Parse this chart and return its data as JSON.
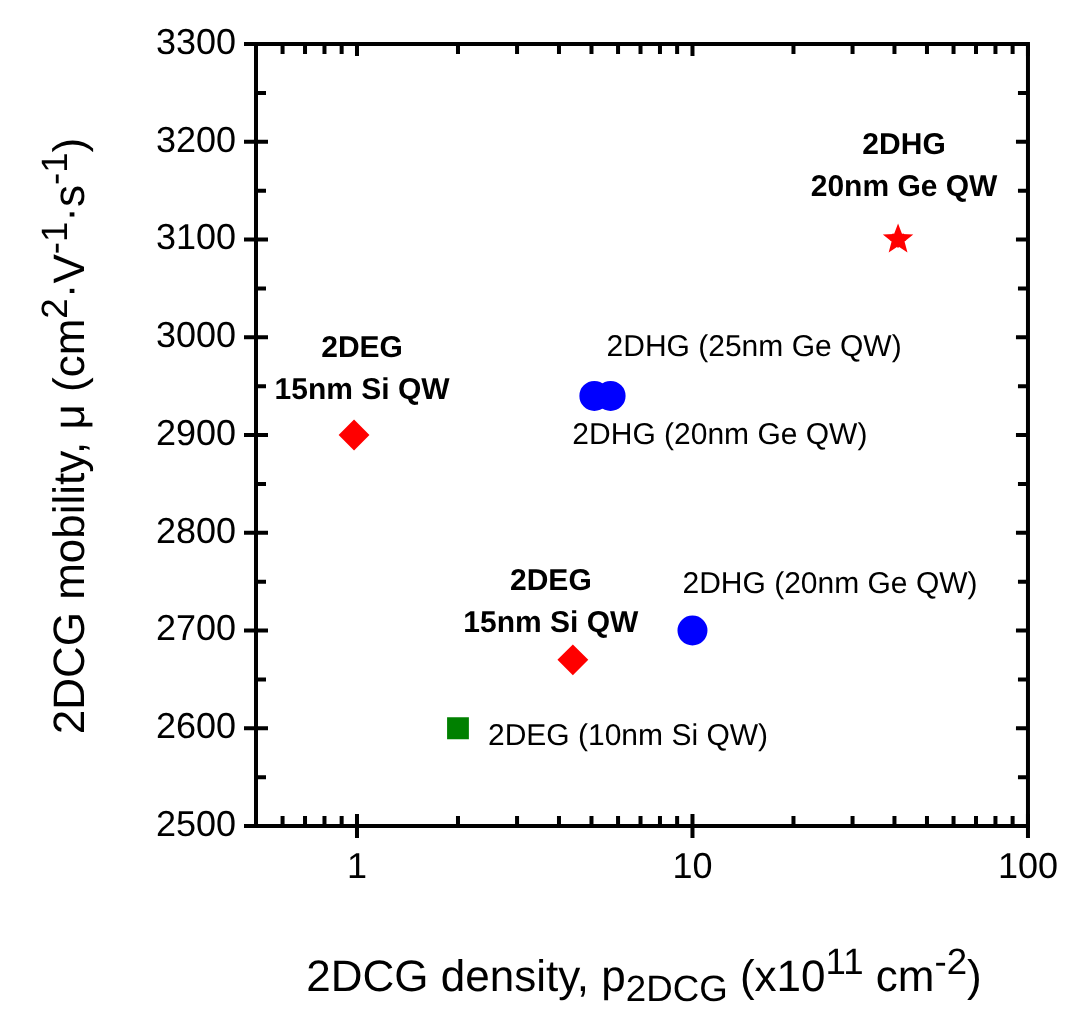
{
  "chart_data": {
    "type": "scatter",
    "xlabel": "2DCG density, p$_{2DCG}$ (x10$^{11}$ cm$^{-2}$)",
    "ylabel": "2DCG mobility, μ (cm$^{2}$·V$^{-1}$·s$^{-1}$)",
    "log": "x",
    "grid": false,
    "legend": false,
    "xlim": [
      0.5,
      100
    ],
    "xticks": [
      {
        "value": 0.5,
        "label": null
      },
      {
        "value": 0.6,
        "label": null
      },
      {
        "value": 0.7,
        "label": null
      },
      {
        "value": 0.8,
        "label": null
      },
      {
        "value": 0.9,
        "label": null
      },
      1,
      {
        "value": 2,
        "label": null
      },
      {
        "value": 3,
        "label": null
      },
      {
        "value": 4,
        "label": null
      },
      {
        "value": 5,
        "label": null
      },
      {
        "value": 6,
        "label": null
      },
      {
        "value": 7,
        "label": null
      },
      {
        "value": 8,
        "label": null
      },
      {
        "value": 9,
        "label": null
      },
      10,
      {
        "value": 20,
        "label": null
      },
      {
        "value": 30,
        "label": null
      },
      {
        "value": 40,
        "label": null
      },
      {
        "value": 50,
        "label": null
      },
      {
        "value": 60,
        "label": null
      },
      {
        "value": 70,
        "label": null
      },
      {
        "value": 80,
        "label": null
      },
      {
        "value": 90,
        "label": null
      },
      100
    ],
    "ylim": [
      2500,
      3300
    ],
    "yticks": [
      2500,
      {
        "value": 2550,
        "label": null
      },
      2600,
      {
        "value": 2650,
        "label": null
      },
      2700,
      {
        "value": 2750,
        "label": null
      },
      2800,
      {
        "value": 2850,
        "label": null
      },
      2900,
      {
        "value": 2950,
        "label": null
      },
      3000,
      {
        "value": 3050,
        "label": null
      },
      3100,
      {
        "value": 3150,
        "label": null
      },
      3200,
      {
        "value": 3250,
        "label": null
      },
      3300
    ],
    "series": [
      {
        "color": "#ff0000",
        "marker": "diamond",
        "x": [
          0.98,
          4.4
        ],
        "values": [
          2900,
          2670
        ]
      },
      {
        "color": "#0000ff",
        "marker": "circle",
        "x": [
          5.1,
          5.7,
          10
        ],
        "values": [
          2940,
          2940,
          2700
        ]
      },
      {
        "color": "#008000",
        "marker": "square",
        "x": [
          2
        ],
        "values": [
          2600
        ]
      },
      {
        "color": "#ff0000",
        "marker": "star",
        "x": [
          41
        ],
        "values": [
          3100
        ]
      }
    ],
    "annotations": [
      {
        "text": "2DEG\n15nm Si QW",
        "x": 0.98,
        "y": 2900
      },
      {
        "text": "2DEG\n15nm Si QW",
        "x": 4.4,
        "y": 2670
      },
      {
        "text": "2DHG\n20nm Ge QW",
        "x": 41,
        "y": 3100
      },
      {
        "text": "2DHG (25nm Ge QW)",
        "x": 5.7,
        "y": 2940
      },
      {
        "text": "2DHG (20nm Ge QW)",
        "x": 5.1,
        "y": 2940
      },
      {
        "text": "2DHG (20nm Ge QW)",
        "x": 10,
        "y": 2700
      },
      {
        "text": "2DEG (10nm Si QW)",
        "x": 2,
        "y": 2600
      }
    ]
  }
}
